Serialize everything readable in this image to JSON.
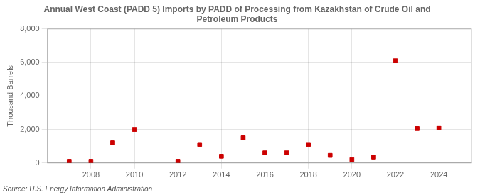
{
  "chart_data": {
    "type": "scatter",
    "title": "Annual West Coast (PADD 5) Imports by PADD of Processing from Kazakhstan of Crude Oil and\nPetroleum Products",
    "ylabel": "Thousand Barrels",
    "annotation": "Source: U.S. Energy Information Administration",
    "x": [
      2007,
      2008,
      2009,
      2010,
      2012,
      2013,
      2014,
      2015,
      2016,
      2017,
      2018,
      2019,
      2020,
      2021,
      2022,
      2023,
      2024
    ],
    "values": [
      100,
      100,
      1200,
      2000,
      100,
      1100,
      400,
      1500,
      600,
      600,
      1100,
      450,
      200,
      350,
      6100,
      2050,
      2100
    ],
    "color": "#cc0000",
    "marker": "square",
    "xlim": [
      2006.0,
      2025.5
    ],
    "xticks": [
      2008,
      2010,
      2012,
      2014,
      2016,
      2018,
      2020,
      2022,
      2024
    ],
    "ylim": [
      0,
      8000
    ],
    "yticks": [
      0,
      {
        "value": 2000,
        "label": "2,000"
      },
      {
        "value": 4000,
        "label": "4,000"
      },
      {
        "value": 6000,
        "label": "6,000"
      },
      {
        "value": 8000,
        "label": "8,000"
      }
    ],
    "grid": true
  }
}
